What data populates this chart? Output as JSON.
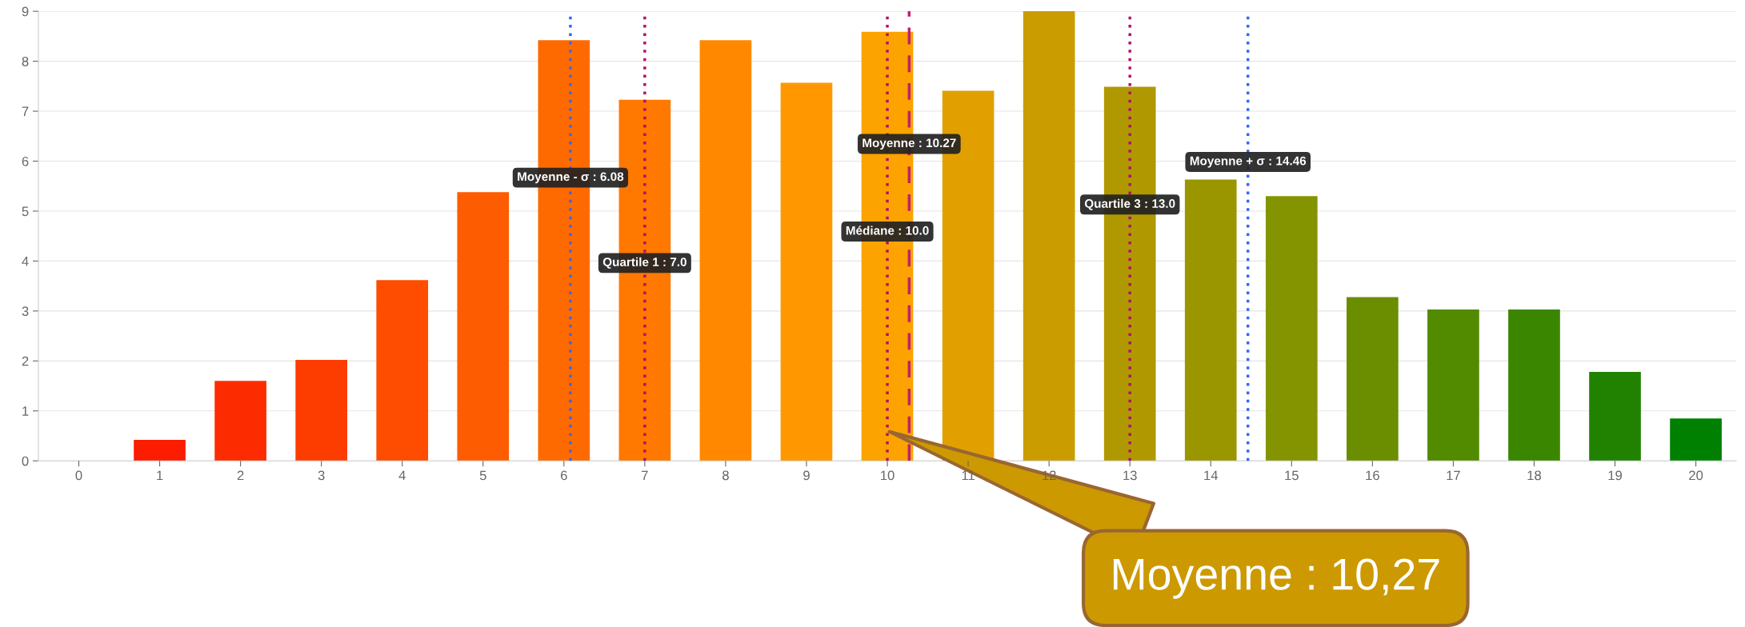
{
  "chart_data": {
    "type": "bar",
    "x": [
      0,
      1,
      2,
      3,
      4,
      5,
      6,
      7,
      8,
      9,
      10,
      11,
      12,
      13,
      14,
      15,
      16,
      17,
      18,
      19,
      20
    ],
    "values": [
      0,
      0.42,
      1.6,
      2.02,
      3.62,
      5.38,
      8.42,
      7.23,
      8.42,
      7.57,
      8.59,
      7.41,
      9.0,
      7.49,
      5.63,
      5.3,
      3.28,
      3.03,
      3.03,
      1.78,
      0.85
    ],
    "colors": [
      "#ff1000",
      "#fc1c00",
      "#fd2c00",
      "#fd3c00",
      "#fe4c00",
      "#fe5c00",
      "#ff6a00",
      "#ff7800",
      "#ff8800",
      "#ff9800",
      "#fca300",
      "#e2a000",
      "#ca9c00",
      "#b09800",
      "#9a9600",
      "#839400",
      "#6a8e00",
      "#528a00",
      "#3a8600",
      "#208200",
      "#008000"
    ],
    "xlim": [
      -0.5,
      20.5
    ],
    "xticks": [
      0,
      1,
      2,
      3,
      4,
      5,
      6,
      7,
      8,
      9,
      10,
      11,
      12,
      13,
      14,
      15,
      16,
      17,
      18,
      19,
      20
    ],
    "ylim": [
      0,
      9
    ],
    "yticks": [
      0,
      1,
      2,
      3,
      4,
      5,
      6,
      7,
      8,
      9
    ],
    "grid": "y",
    "ref_lines": [
      {
        "axis": "x",
        "value": 6.08,
        "label": "Moyenne - σ : 6.08",
        "color": "#3366ff",
        "line_style": "dotted"
      },
      {
        "axis": "x",
        "value": 7.0,
        "label": "Quartile 1 : 7.0",
        "color": "#b0106a",
        "line_style": "dotted"
      },
      {
        "axis": "x",
        "value": 10.0,
        "label": "Médiane : 10.0",
        "color": "#b0106a",
        "line_style": "dotted"
      },
      {
        "axis": "x",
        "value": 10.27,
        "label": "Moyenne : 10.27",
        "color": "#c0206a",
        "line_style": "dashed"
      },
      {
        "axis": "x",
        "value": 13.0,
        "label": "Quartile 3 : 13.0",
        "color": "#b0106a",
        "line_style": "dotted"
      },
      {
        "axis": "x",
        "value": 14.46,
        "label": "Moyenne + σ : 14.46",
        "color": "#3366ff",
        "line_style": "dotted"
      }
    ],
    "annotations": [
      {
        "text": "Moyenne : 10,27",
        "x": 10,
        "y": 0.6
      }
    ]
  }
}
